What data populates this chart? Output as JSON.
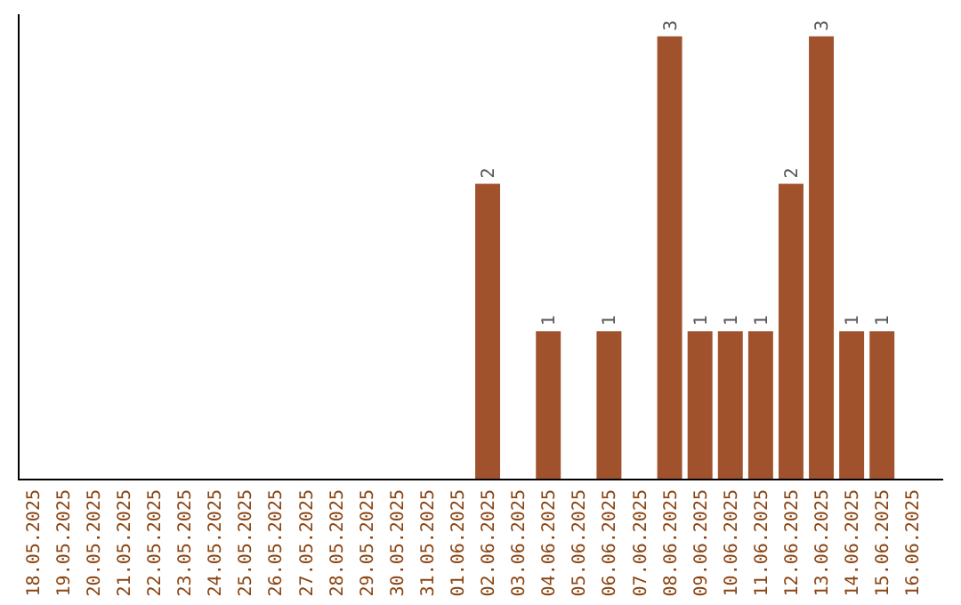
{
  "chart_data": {
    "type": "bar",
    "categories": [
      "18.05.2025",
      "19.05.2025",
      "20.05.2025",
      "21.05.2025",
      "22.05.2025",
      "23.05.2025",
      "24.05.2025",
      "25.05.2025",
      "26.05.2025",
      "27.05.2025",
      "28.05.2025",
      "29.05.2025",
      "30.05.2025",
      "31.05.2025",
      "01.06.2025",
      "02.06.2025",
      "03.06.2025",
      "04.06.2025",
      "05.06.2025",
      "06.06.2025",
      "07.06.2025",
      "08.06.2025",
      "09.06.2025",
      "10.06.2025",
      "11.06.2025",
      "12.06.2025",
      "13.06.2025",
      "14.06.2025",
      "15.06.2025",
      "16.06.2025"
    ],
    "values": [
      null,
      null,
      null,
      null,
      null,
      null,
      null,
      null,
      null,
      null,
      null,
      null,
      null,
      null,
      null,
      2,
      null,
      1,
      null,
      1,
      null,
      3,
      1,
      1,
      1,
      2,
      3,
      1,
      1,
      null
    ],
    "value_labels": [
      null,
      null,
      null,
      null,
      null,
      null,
      null,
      null,
      null,
      null,
      null,
      null,
      null,
      null,
      null,
      "2",
      null,
      "1",
      null,
      "1",
      null,
      "3",
      "1",
      "1",
      "1",
      "2",
      "3",
      "1",
      "1",
      null
    ],
    "color": "#a0522d",
    "tick_labels": "x"
  }
}
